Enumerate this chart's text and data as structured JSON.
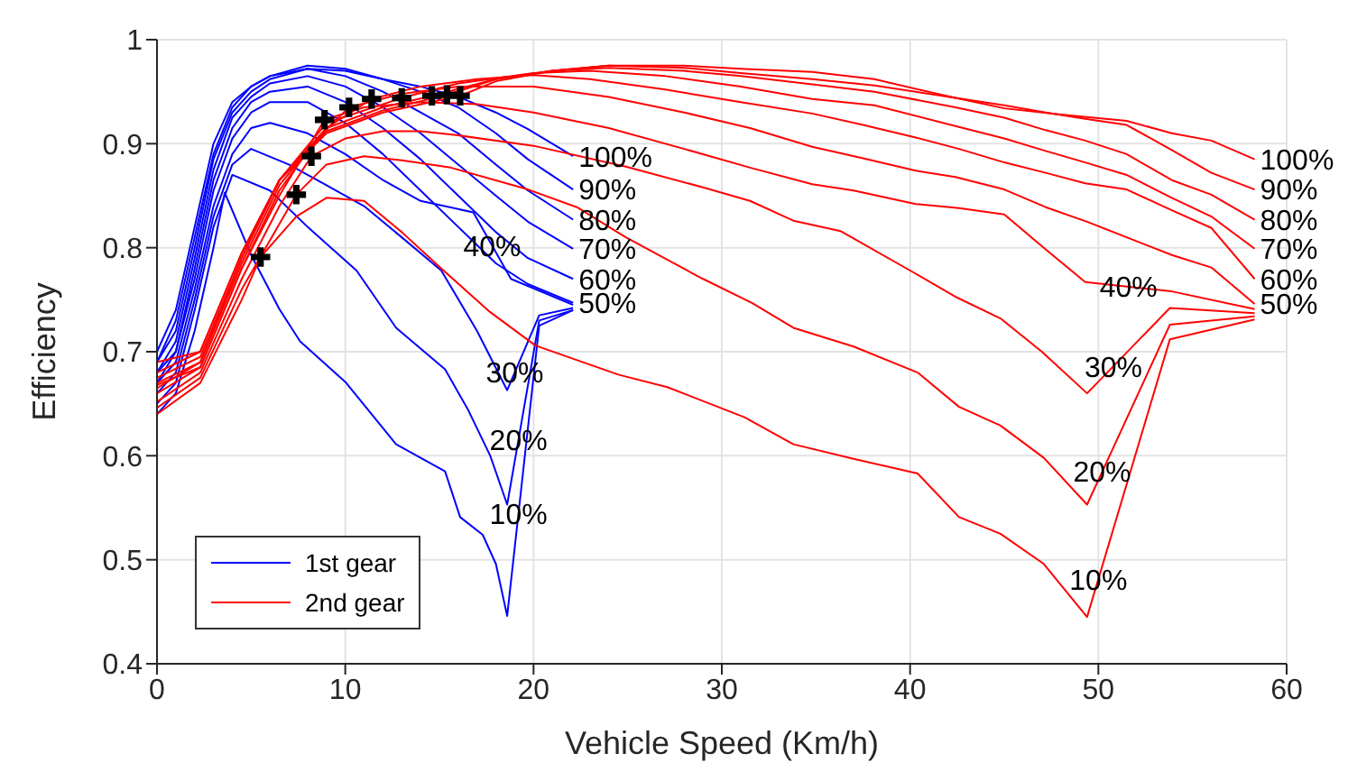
{
  "chart_data": {
    "type": "line",
    "xlabel": "Vehicle Speed (Km/h)",
    "ylabel": "Efficiency",
    "xlim": [
      0,
      60
    ],
    "xticks": [
      0,
      10,
      20,
      30,
      40,
      50,
      60
    ],
    "ylim": [
      0.4,
      1
    ],
    "yticks": [
      0.4,
      0.5,
      0.6,
      0.7,
      0.8,
      0.9,
      1
    ],
    "grid": true,
    "legend": "bottom left",
    "marker": "none",
    "line_style": "solid",
    "series": [
      {
        "name": "1st gear",
        "color": "#0000ff",
        "x": [
          0,
          1,
          2,
          3,
          4,
          5,
          6,
          8,
          10,
          12,
          14,
          16,
          18,
          19.7,
          22.1
        ],
        "values": [
          0.7,
          0.74,
          0.82,
          0.9,
          0.94,
          0.955,
          0.965,
          0.972,
          0.97,
          0.962,
          0.955,
          0.945,
          0.93,
          0.914,
          0.888
        ]
      },
      {
        "color": "#0000ff",
        "x": [
          0,
          1,
          2,
          3,
          4,
          5,
          6,
          8,
          10,
          12,
          14,
          16,
          18,
          19.7,
          22.1
        ],
        "values": [
          0.69,
          0.73,
          0.81,
          0.89,
          0.935,
          0.955,
          0.965,
          0.975,
          0.972,
          0.962,
          0.95,
          0.935,
          0.91,
          0.885,
          0.856
        ]
      },
      {
        "color": "#0000ff",
        "x": [
          0,
          1,
          2,
          3,
          4,
          5,
          6,
          8,
          10,
          12,
          14,
          16,
          18,
          19.7,
          22.1
        ],
        "values": [
          0.69,
          0.72,
          0.8,
          0.885,
          0.93,
          0.95,
          0.962,
          0.972,
          0.965,
          0.95,
          0.93,
          0.91,
          0.88,
          0.855,
          0.827
        ]
      },
      {
        "color": "#0000ff",
        "x": [
          0,
          1,
          2,
          3,
          4,
          5,
          6,
          8,
          10,
          12,
          14,
          16,
          18,
          19.7,
          22.1
        ],
        "values": [
          0.68,
          0.71,
          0.79,
          0.875,
          0.925,
          0.945,
          0.958,
          0.965,
          0.955,
          0.935,
          0.91,
          0.88,
          0.85,
          0.825,
          0.799
        ]
      },
      {
        "color": "#0000ff",
        "x": [
          0,
          1,
          2,
          3,
          4,
          5,
          6,
          8,
          10,
          12,
          14,
          16,
          18,
          19.7,
          22.1
        ],
        "values": [
          0.68,
          0.7,
          0.78,
          0.865,
          0.915,
          0.94,
          0.95,
          0.955,
          0.94,
          0.915,
          0.885,
          0.85,
          0.815,
          0.79,
          0.77
        ]
      },
      {
        "color": "#0000ff",
        "x": [
          0,
          1,
          2,
          3,
          4,
          5,
          6,
          8,
          10,
          12,
          14,
          16,
          18,
          19.7,
          22.1
        ],
        "values": [
          0.67,
          0.7,
          0.77,
          0.855,
          0.905,
          0.93,
          0.94,
          0.94,
          0.92,
          0.89,
          0.855,
          0.82,
          0.785,
          0.765,
          0.747
        ]
      },
      {
        "color": "#0000ff",
        "x": [
          0,
          1,
          2,
          3,
          4,
          5,
          6,
          8,
          10,
          12,
          14,
          16.8,
          18.8,
          22.1
        ],
        "values": [
          0.67,
          0.69,
          0.76,
          0.84,
          0.89,
          0.915,
          0.92,
          0.91,
          0.89,
          0.865,
          0.845,
          0.834,
          0.77,
          0.745
        ]
      },
      {
        "color": "#0000ff",
        "x": [
          0,
          1,
          2,
          3,
          4,
          5,
          7,
          9,
          11,
          13,
          15.1,
          17,
          18.6,
          20.3,
          22.1
        ],
        "values": [
          0.66,
          0.68,
          0.75,
          0.83,
          0.88,
          0.895,
          0.88,
          0.86,
          0.84,
          0.81,
          0.778,
          0.72,
          0.663,
          0.735,
          0.742
        ]
      },
      {
        "color": "#0000ff",
        "x": [
          0,
          1,
          2,
          3,
          4,
          6,
          8,
          10.6,
          12.7,
          15.3,
          16.5,
          17.7,
          18.6,
          20.3,
          22.1
        ],
        "values": [
          0.65,
          0.67,
          0.74,
          0.82,
          0.87,
          0.855,
          0.82,
          0.778,
          0.723,
          0.683,
          0.645,
          0.6,
          0.553,
          0.73,
          0.74
        ]
      },
      {
        "color": "#0000ff",
        "x": [
          0,
          1,
          2,
          3,
          3.6,
          5,
          6.5,
          7.6,
          10,
          12.7,
          15.3,
          16.1,
          17.3,
          18,
          18.6,
          20.3,
          22.1
        ],
        "values": [
          0.64,
          0.66,
          0.72,
          0.8,
          0.853,
          0.793,
          0.741,
          0.71,
          0.671,
          0.611,
          0.585,
          0.541,
          0.524,
          0.496,
          0.446,
          0.725,
          0.74
        ]
      },
      {
        "name": "2nd gear",
        "color": "#ff0000",
        "x": [
          0,
          2.3,
          4.5,
          6.5,
          9,
          12,
          16.1,
          18,
          21,
          24,
          28,
          31,
          34.8,
          38.1,
          42.4,
          45,
          48,
          51.5,
          53.9,
          56,
          58.3
        ],
        "values": [
          0.69,
          0.7,
          0.795,
          0.865,
          0.91,
          0.93,
          0.946,
          0.96,
          0.97,
          0.975,
          0.975,
          0.972,
          0.969,
          0.962,
          0.944,
          0.934,
          0.928,
          0.922,
          0.91,
          0.903,
          0.885
        ]
      },
      {
        "color": "#ff0000",
        "x": [
          0,
          2.3,
          4.5,
          6.5,
          9,
          12,
          15.4,
          18,
          21,
          24,
          28,
          31,
          34.8,
          38.1,
          42.4,
          45,
          47.2,
          49.3,
          51.5,
          53.9,
          56,
          58.3
        ],
        "values": [
          0.68,
          0.7,
          0.795,
          0.865,
          0.912,
          0.932,
          0.947,
          0.962,
          0.97,
          0.975,
          0.973,
          0.968,
          0.962,
          0.956,
          0.944,
          0.937,
          0.93,
          0.924,
          0.918,
          0.894,
          0.872,
          0.856
        ]
      },
      {
        "color": "#ff0000",
        "x": [
          0,
          2.3,
          4.5,
          6.5,
          9,
          12,
          14.6,
          18,
          21,
          24,
          28,
          31,
          34.8,
          38.1,
          42.4,
          45,
          47.2,
          49.3,
          51.5,
          53.9,
          56,
          58.3
        ],
        "values": [
          0.675,
          0.695,
          0.79,
          0.865,
          0.915,
          0.935,
          0.946,
          0.962,
          0.97,
          0.973,
          0.97,
          0.965,
          0.957,
          0.95,
          0.935,
          0.925,
          0.913,
          0.903,
          0.89,
          0.865,
          0.851,
          0.827
        ]
      },
      {
        "color": "#ff0000",
        "x": [
          0,
          2.3,
          4.5,
          6.5,
          9,
          13,
          16,
          20,
          23,
          27,
          31,
          34.8,
          38.1,
          42.4,
          45,
          47.2,
          49.3,
          51.5,
          53.9,
          56,
          58.3
        ],
        "values": [
          0.67,
          0.69,
          0.79,
          0.865,
          0.92,
          0.944,
          0.958,
          0.968,
          0.97,
          0.965,
          0.955,
          0.943,
          0.937,
          0.917,
          0.905,
          0.893,
          0.882,
          0.87,
          0.848,
          0.83,
          0.799
        ]
      },
      {
        "color": "#ff0000",
        "x": [
          0,
          2.3,
          4.5,
          6.5,
          9,
          11.4,
          14,
          17,
          20,
          23,
          27,
          31,
          34.8,
          37.5,
          40.3,
          42.6,
          45,
          47.2,
          49.3,
          51.5,
          53.9,
          56,
          58.3
        ],
        "values": [
          0.665,
          0.69,
          0.785,
          0.86,
          0.915,
          0.943,
          0.955,
          0.962,
          0.966,
          0.962,
          0.952,
          0.94,
          0.929,
          0.918,
          0.906,
          0.895,
          0.882,
          0.872,
          0.862,
          0.856,
          0.836,
          0.819,
          0.77
        ]
      },
      {
        "color": "#ff0000",
        "x": [
          0,
          2.3,
          4.5,
          6.5,
          8.5,
          10.2,
          13,
          16,
          20,
          24,
          28,
          31.5,
          34.8,
          37.5,
          40.3,
          42.4,
          45,
          47.2,
          49.4,
          51.5,
          53.9,
          56,
          58.3
        ],
        "values": [
          0.668,
          0.685,
          0.78,
          0.855,
          0.905,
          0.935,
          0.948,
          0.955,
          0.955,
          0.945,
          0.93,
          0.915,
          0.897,
          0.886,
          0.874,
          0.868,
          0.856,
          0.839,
          0.825,
          0.81,
          0.793,
          0.781,
          0.746
        ]
      },
      {
        "color": "#ff0000",
        "x": [
          0,
          2.3,
          4.5,
          6.5,
          8.9,
          11,
          14,
          17,
          20,
          24,
          28,
          31.5,
          34.8,
          37,
          40.3,
          42.6,
          45,
          47.1,
          49.3,
          53.9,
          58.3
        ],
        "values": [
          0.66,
          0.685,
          0.78,
          0.85,
          0.923,
          0.935,
          0.94,
          0.938,
          0.93,
          0.915,
          0.895,
          0.877,
          0.861,
          0.855,
          0.842,
          0.838,
          0.832,
          0.8,
          0.767,
          0.758,
          0.741
        ]
      },
      {
        "color": "#ff0000",
        "x": [
          0,
          2.3,
          4.5,
          6.5,
          8.2,
          10,
          12,
          14,
          16,
          20,
          24.9,
          29,
          31.5,
          33.8,
          36.3,
          40.3,
          42.5,
          44.8,
          47,
          49.4,
          53.8,
          58.3
        ],
        "values": [
          0.652,
          0.68,
          0.77,
          0.84,
          0.888,
          0.905,
          0.912,
          0.912,
          0.908,
          0.898,
          0.878,
          0.858,
          0.845,
          0.826,
          0.816,
          0.775,
          0.752,
          0.732,
          0.7,
          0.66,
          0.742,
          0.737
        ]
      },
      {
        "color": "#ff0000",
        "x": [
          0,
          2.3,
          4.5,
          7.4,
          9,
          11,
          13,
          15.6,
          19.7,
          22.3,
          24.9,
          29,
          31.6,
          33.8,
          37,
          40.4,
          42.6,
          44.8,
          47.1,
          49.4,
          53.8,
          58.3
        ],
        "values": [
          0.646,
          0.675,
          0.76,
          0.851,
          0.88,
          0.888,
          0.884,
          0.877,
          0.856,
          0.839,
          0.81,
          0.77,
          0.747,
          0.723,
          0.705,
          0.68,
          0.647,
          0.629,
          0.598,
          0.553,
          0.726,
          0.734
        ]
      },
      {
        "color": "#ff0000",
        "x": [
          0,
          2.3,
          4.5,
          5.5,
          7.4,
          9,
          11,
          13,
          15.1,
          17.7,
          20.1,
          24.5,
          27.1,
          31.2,
          33.8,
          37,
          40.4,
          42.6,
          44.8,
          47.1,
          49.4,
          53.8,
          58.3
        ],
        "values": [
          0.64,
          0.67,
          0.75,
          0.791,
          0.83,
          0.848,
          0.845,
          0.815,
          0.78,
          0.738,
          0.706,
          0.678,
          0.666,
          0.637,
          0.611,
          0.597,
          0.583,
          0.541,
          0.525,
          0.496,
          0.445,
          0.712,
          0.731
        ]
      },
      {
        "type": "scatter",
        "marker": "cross",
        "color": "#000000",
        "x": [
          5.5,
          7.4,
          8.2,
          8.9,
          10.2,
          11.4,
          13.0,
          14.6,
          15.4,
          16.1
        ],
        "values": [
          0.791,
          0.851,
          0.888,
          0.923,
          0.935,
          0.943,
          0.944,
          0.946,
          0.947,
          0.946
        ]
      }
    ],
    "annotations": [
      {
        "text": "100%",
        "x": 22.1,
        "y": 0.888
      },
      {
        "text": "90%",
        "x": 22.1,
        "y": 0.856
      },
      {
        "text": "80%",
        "x": 22.1,
        "y": 0.827
      },
      {
        "text": "70%",
        "x": 22.1,
        "y": 0.799
      },
      {
        "text": "60%",
        "x": 22.1,
        "y": 0.77
      },
      {
        "text": "50%",
        "x": 22.1,
        "y": 0.747
      },
      {
        "text": "40%",
        "x": 17.8,
        "y": 0.802
      },
      {
        "text": "30%",
        "x": 19.0,
        "y": 0.68
      },
      {
        "text": "20%",
        "x": 19.2,
        "y": 0.615
      },
      {
        "text": "10%",
        "x": 19.2,
        "y": 0.544
      },
      {
        "text": "100%",
        "x": 58.3,
        "y": 0.885
      },
      {
        "text": "90%",
        "x": 58.3,
        "y": 0.856
      },
      {
        "text": "80%",
        "x": 58.3,
        "y": 0.827
      },
      {
        "text": "70%",
        "x": 58.3,
        "y": 0.799
      },
      {
        "text": "60%",
        "x": 58.3,
        "y": 0.77
      },
      {
        "text": "50%",
        "x": 58.3,
        "y": 0.746
      },
      {
        "text": "40%",
        "x": 51.6,
        "y": 0.763
      },
      {
        "text": "30%",
        "x": 50.8,
        "y": 0.686
      },
      {
        "text": "20%",
        "x": 50.2,
        "y": 0.585
      },
      {
        "text": "10%",
        "x": 50.0,
        "y": 0.481
      }
    ]
  }
}
